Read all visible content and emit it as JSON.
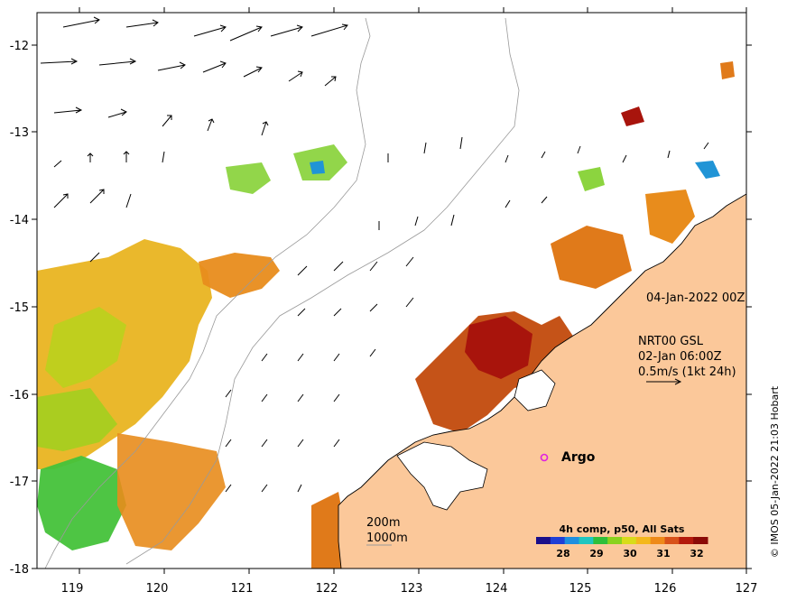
{
  "map": {
    "x_axis": {
      "ticks": [
        "119",
        "120",
        "121",
        "122",
        "123",
        "124",
        "125",
        "126",
        "127"
      ]
    },
    "y_axis": {
      "ticks": [
        "-12",
        "-13",
        "-14",
        "-15",
        "-16",
        "-17",
        "-18"
      ]
    },
    "extent": {
      "lon_min": 118.65,
      "lon_max": 127.0,
      "lat_min": -18.0,
      "lat_max": -11.75
    }
  },
  "annotations": {
    "date": "04-Jan-2022 00Z",
    "current_product": "NRT00 GSL",
    "current_time": "02-Jan 06:00Z",
    "scale_label": "0.5m/s (1kt 24h)",
    "argo_label": "Argo",
    "isobath_200": "200m",
    "isobath_1000": "1000m",
    "credit": "© IMOS 05-Jan-2022 21:03 Hobart"
  },
  "colorbar": {
    "title": "4h comp, p50, All Sats",
    "ticks": [
      "28",
      "29",
      "30",
      "31",
      "32"
    ],
    "colors": [
      "#1a0f8a",
      "#1f3fd6",
      "#1e8fe0",
      "#20c6c0",
      "#2fbf3a",
      "#8ad21e",
      "#d8dc1a",
      "#f4b81c",
      "#ee8a1a",
      "#d8521a",
      "#b41a0c",
      "#8a0a06"
    ]
  },
  "colors": {
    "land": "#fbc89a",
    "coast": "#000000",
    "isobath": "#9a9a9a",
    "argo_marker": "#e020e0"
  }
}
